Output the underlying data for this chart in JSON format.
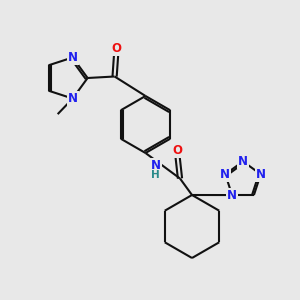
{
  "bg_color": "#e8e8e8",
  "bond_color": "#111111",
  "N_color": "#2020ee",
  "O_color": "#ee1111",
  "NH_color": "#2a8a8a",
  "font_size": 8.5,
  "bond_lw": 1.5,
  "fig_width": 3.0,
  "fig_height": 3.0,
  "dpi": 100,
  "xlim": [
    0,
    10
  ],
  "ylim": [
    0,
    10
  ]
}
